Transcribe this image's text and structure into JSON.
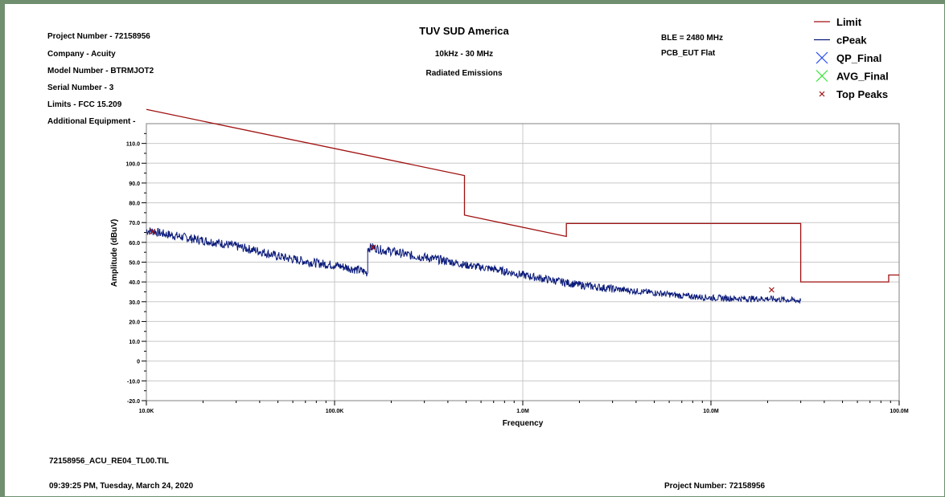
{
  "header": {
    "project_number": "Project Number - 72158956",
    "company": "Company - Acuity",
    "model_number": "Model Number - BTRMJOT2",
    "serial_number": "Serial Number - 3",
    "limits": "Limits - FCC 15.209",
    "additional_equipment": "Additional Equipment -",
    "lab_title": "TUV SUD America",
    "freq_range": "10kHz - 30 MHz",
    "test_type": "Radiated Emissions",
    "ble": "BLE = 2480 MHz",
    "config": "PCB_EUT Flat"
  },
  "footer": {
    "file_name": "72158956_ACU_RE04_TL00.TIL",
    "timestamp": "09:39:25 PM, Tuesday, March 24, 2020",
    "project_number": "Project Number: 72158956"
  },
  "chart_data": {
    "type": "line",
    "xlabel": "Frequency",
    "ylabel": "Amplitude (dBuV)",
    "x_scale": "log",
    "xlim": [
      10000,
      100000000
    ],
    "ylim": [
      -20,
      120
    ],
    "grid": true,
    "legend_position": "top-right",
    "x_ticks": [
      {
        "value": 10000,
        "label": "10.0K"
      },
      {
        "value": 100000,
        "label": "100.0K"
      },
      {
        "value": 1000000,
        "label": "1.0M"
      },
      {
        "value": 10000000,
        "label": "10.0M"
      },
      {
        "value": 100000000,
        "label": "100.0M"
      }
    ],
    "y_ticks": [
      {
        "value": -20,
        "label": "-20.0"
      },
      {
        "value": -10,
        "label": "-10.0"
      },
      {
        "value": 0,
        "label": "0"
      },
      {
        "value": 10,
        "label": "10.0"
      },
      {
        "value": 20,
        "label": "20.0"
      },
      {
        "value": 30,
        "label": "30.0"
      },
      {
        "value": 40,
        "label": "40.0"
      },
      {
        "value": 50,
        "label": "50.0"
      },
      {
        "value": 60,
        "label": "60.0"
      },
      {
        "value": 70,
        "label": "70.0"
      },
      {
        "value": 80,
        "label": "80.0"
      },
      {
        "value": 90,
        "label": "90.0"
      },
      {
        "value": 100,
        "label": "100.0"
      },
      {
        "value": 110,
        "label": "110.0"
      }
    ],
    "series": [
      {
        "name": "Limit",
        "color": "#a01010",
        "style": "line",
        "points": [
          [
            10000,
            127.2
          ],
          [
            490000,
            93.8
          ],
          [
            490000,
            73.8
          ],
          [
            1705000,
            63.0
          ],
          [
            1705000,
            69.5
          ],
          [
            30000000,
            69.5
          ],
          [
            30000000,
            40.0
          ],
          [
            88000000,
            40.0
          ],
          [
            88000000,
            43.5
          ],
          [
            100000000,
            43.5
          ]
        ]
      },
      {
        "name": "cPeak",
        "color": "#0a1a7a",
        "style": "line",
        "points": [
          [
            10000,
            66.0
          ],
          [
            11000,
            65.5
          ],
          [
            12000,
            64.5
          ],
          [
            14000,
            63.5
          ],
          [
            17000,
            62.0
          ],
          [
            20000,
            61.0
          ],
          [
            25000,
            59.5
          ],
          [
            30000,
            58.0
          ],
          [
            40000,
            55.5
          ],
          [
            50000,
            53.0
          ],
          [
            60000,
            51.5
          ],
          [
            80000,
            49.5
          ],
          [
            100000,
            48.5
          ],
          [
            120000,
            47.0
          ],
          [
            140000,
            45.5
          ],
          [
            150000,
            44.5
          ],
          [
            150000,
            57.0
          ],
          [
            160000,
            57.5
          ],
          [
            180000,
            56.0
          ],
          [
            200000,
            55.5
          ],
          [
            250000,
            53.5
          ],
          [
            300000,
            52.5
          ],
          [
            400000,
            50.5
          ],
          [
            500000,
            48.5
          ],
          [
            700000,
            46.5
          ],
          [
            1000000,
            43.5
          ],
          [
            1500000,
            40.5
          ],
          [
            2000000,
            38.5
          ],
          [
            3000000,
            36.5
          ],
          [
            5000000,
            34.5
          ],
          [
            7000000,
            33.0
          ],
          [
            10000000,
            32.0
          ],
          [
            15000000,
            31.5
          ],
          [
            20000000,
            31.5
          ],
          [
            25000000,
            31.0
          ],
          [
            30000000,
            30.5
          ]
        ]
      }
    ],
    "legend": [
      {
        "name": "Limit",
        "marker": "line",
        "color": "#a01010"
      },
      {
        "name": "cPeak",
        "marker": "line",
        "color": "#0a1a7a"
      },
      {
        "name": "QP_Final",
        "marker": "x-large",
        "color": "#2b4ef0"
      },
      {
        "name": "AVG_Final",
        "marker": "x-large",
        "color": "#38e838"
      },
      {
        "name": "Top Peaks",
        "marker": "x-small",
        "color": "#a01010"
      }
    ],
    "top_peaks": [
      [
        10800,
        65.5
      ],
      [
        160000,
        57.5
      ],
      [
        21000000,
        36.0
      ]
    ]
  }
}
